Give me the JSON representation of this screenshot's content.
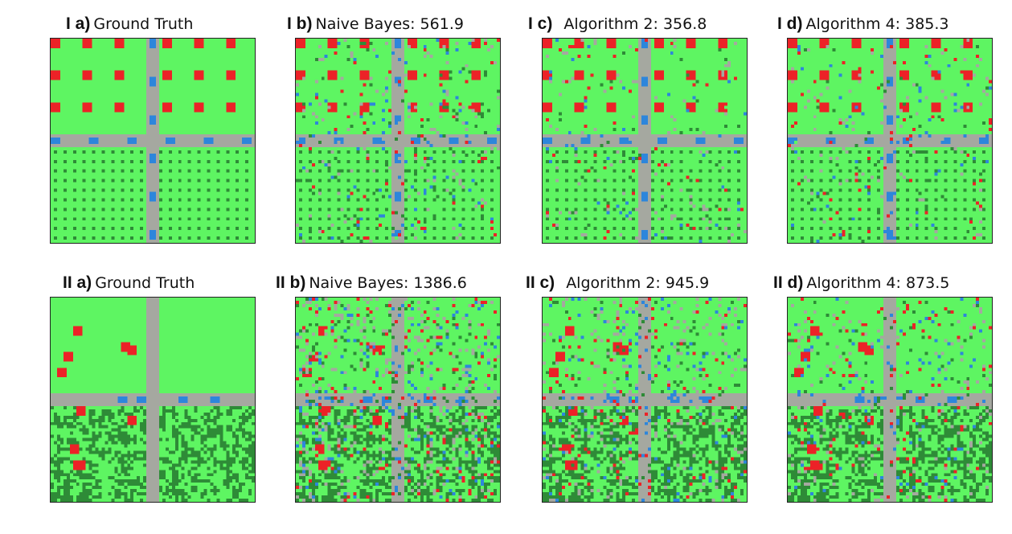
{
  "colors": {
    "field": "#5ef562",
    "crop": "#2e8b37",
    "road": "#a5a8a0",
    "building": "#ec2227",
    "vehicle": "#2d86db"
  },
  "rows": [
    {
      "panels": [
        {
          "label": "I a)",
          "title": "Ground Truth"
        },
        {
          "label": "I b)",
          "title": "Naive Bayes: 561.9"
        },
        {
          "label": "I c)",
          "title": "Algorithm 2: 356.8"
        },
        {
          "label": "I d)",
          "title": "Algorithm 4: 385.3"
        }
      ]
    },
    {
      "panels": [
        {
          "label": "II a)",
          "title": "Ground Truth"
        },
        {
          "label": "II b)",
          "title": "Naive Bayes: 1386.6"
        },
        {
          "label": "II c)",
          "title": "Algorithm 2: 945.9"
        },
        {
          "label": "II d)",
          "title": "Algorithm 4: 873.5"
        }
      ]
    }
  ]
}
